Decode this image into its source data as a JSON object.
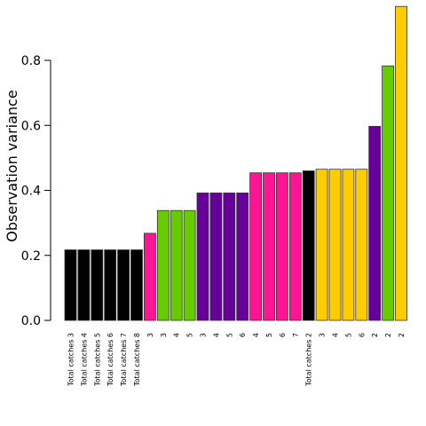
{
  "chart_data": {
    "type": "bar",
    "title": "",
    "xlabel": "",
    "ylabel": "Observation variance",
    "ylim": [
      0,
      0.97
    ],
    "yticks": [
      "0.0",
      "0.2",
      "0.4",
      "0.6",
      "0.8"
    ],
    "ytick_values": [
      0.0,
      0.2,
      0.4,
      0.6,
      0.8
    ],
    "grid": false,
    "legend": "none",
    "categories": [
      "Total catches 3",
      "Total catches 4",
      "Total catches 5",
      "Total catches 6",
      "Total catches 7",
      "Total catches 8",
      "3",
      "3",
      "4",
      "5",
      "3",
      "4",
      "5",
      "6",
      "4",
      "5",
      "6",
      "7",
      "Total catches 2",
      "3",
      "4",
      "5",
      "6",
      "2",
      "2",
      "2"
    ],
    "values": [
      0.217,
      0.217,
      0.217,
      0.217,
      0.217,
      0.217,
      0.268,
      0.338,
      0.338,
      0.338,
      0.392,
      0.392,
      0.392,
      0.392,
      0.454,
      0.454,
      0.454,
      0.454,
      0.46,
      0.465,
      0.465,
      0.465,
      0.465,
      0.597,
      0.783,
      0.966
    ],
    "colors": [
      "#000000",
      "#000000",
      "#000000",
      "#000000",
      "#000000",
      "#000000",
      "#ff1493",
      "#66cc00",
      "#66cc00",
      "#66cc00",
      "#660099",
      "#660099",
      "#660099",
      "#660099",
      "#ff1493",
      "#ff1493",
      "#ff1493",
      "#ff1493",
      "#000000",
      "#ffcc00",
      "#ffcc00",
      "#ffcc00",
      "#ffcc00",
      "#660099",
      "#66cc00",
      "#ffcc00"
    ]
  }
}
